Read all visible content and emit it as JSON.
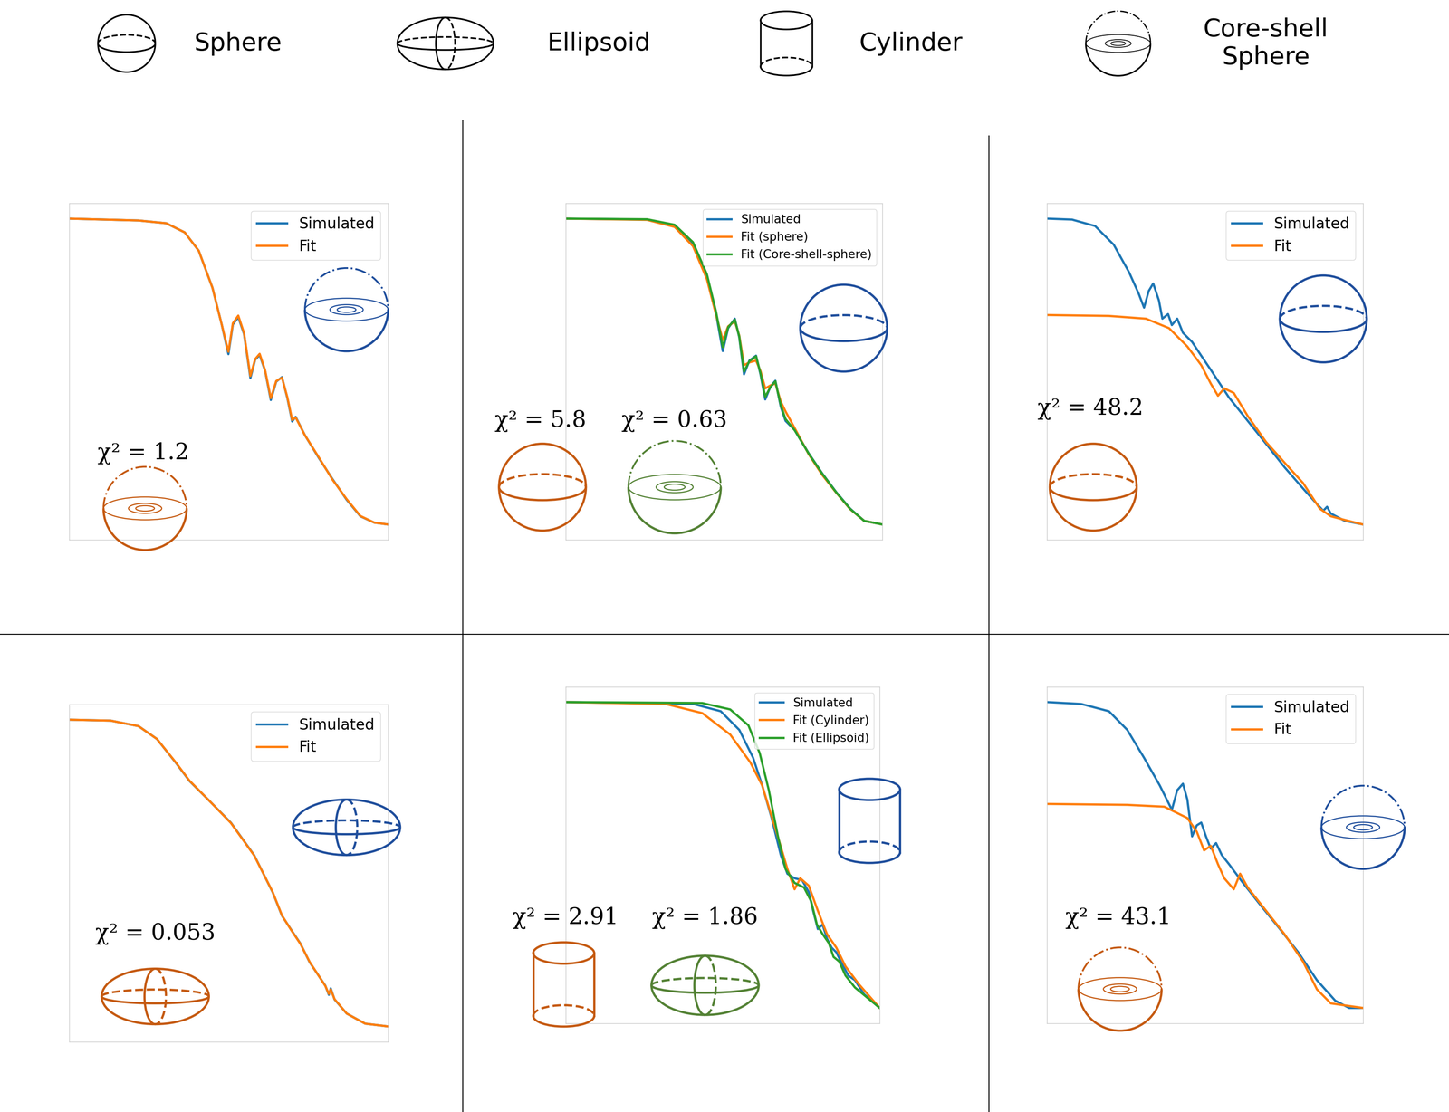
{
  "header": {
    "items": [
      "Sphere",
      "Ellipsoid",
      "Cylinder",
      "Core-shell\nSphere"
    ]
  },
  "chart_data": [
    {
      "type": "line",
      "xlim": [
        0,
        100
      ],
      "ylim": [
        -5,
        105
      ],
      "tick_labels": false,
      "legend": "upper right",
      "annotations": [
        "χ² = 1.2"
      ],
      "series": [
        {
          "name": "Simulated",
          "color": "#1f77b4",
          "x": [
            0,
            21.7,
            30.4,
            36.2,
            40.6,
            44.9,
            47.8,
            49.9,
            51.3,
            53.0,
            54.8,
            56.8,
            58.3,
            59.7,
            61.4,
            63.2,
            64.9,
            66.7,
            68.4,
            69.9,
            71.0,
            73.9,
            78.3,
            82.6,
            87.0,
            91.3,
            95.7,
            100
          ],
          "values": [
            100,
            99.4,
            98.5,
            95.5,
            89.5,
            77.4,
            65.4,
            55.7,
            65.4,
            67.8,
            62.3,
            47.9,
            53.9,
            55.4,
            50.3,
            40.7,
            46.7,
            48.2,
            41.3,
            33.7,
            35.2,
            29.2,
            21.7,
            14.8,
            8.1,
            2.7,
            0.6,
            0
          ]
        },
        {
          "name": "Fit",
          "color": "#ff7f0e",
          "x": [
            0,
            21.7,
            30.4,
            36.2,
            40.6,
            44.9,
            47.8,
            49.9,
            51.3,
            53.0,
            54.8,
            56.8,
            58.3,
            59.7,
            61.4,
            63.2,
            64.9,
            66.7,
            68.4,
            69.9,
            71.0,
            73.9,
            78.3,
            82.6,
            87.0,
            91.3,
            95.7,
            100
          ],
          "values": [
            100,
            99.4,
            98.5,
            95.5,
            89.5,
            77.4,
            65.4,
            56.5,
            65.8,
            68.3,
            62.6,
            48.6,
            54.1,
            55.8,
            50.5,
            41.3,
            46.9,
            48.0,
            41.6,
            34.2,
            35.0,
            29.2,
            21.9,
            14.6,
            8.3,
            2.8,
            0.6,
            0
          ]
        }
      ]
    },
    {
      "type": "line",
      "xlim": [
        0,
        100
      ],
      "ylim": [
        -5,
        105
      ],
      "tick_labels": false,
      "legend": "upper right",
      "annotations": [
        "χ² = 5.8",
        "χ² = 0.63"
      ],
      "series": [
        {
          "name": "Simulated",
          "color": "#1f77b4",
          "x": [
            0,
            25.7,
            34.4,
            40.2,
            44.6,
            47.5,
            49.6,
            51.3,
            53.4,
            54.8,
            56.3,
            58.0,
            60.1,
            61.5,
            63.0,
            64.7,
            66.2,
            67.9,
            69.4,
            72.3,
            76.7,
            81.0,
            85.4,
            89.8,
            94.2,
            100
          ],
          "values": [
            100,
            99.7,
            97.6,
            91.5,
            80.9,
            68.8,
            56.7,
            64.2,
            67.3,
            61.2,
            49.1,
            53.6,
            55.2,
            49.1,
            40.9,
            45.2,
            47.0,
            38.5,
            33.9,
            30.9,
            23.3,
            16.7,
            10.6,
            5.2,
            1.2,
            0
          ]
        },
        {
          "name": "Fit (sphere)",
          "color": "#ff7f0e",
          "x": [
            0,
            25.7,
            34.4,
            40.2,
            44.6,
            47.5,
            49.6,
            51.3,
            53.4,
            54.8,
            56.3,
            58.0,
            60.1,
            61.5,
            63.0,
            64.7,
            66.2,
            67.9,
            69.4,
            72.3,
            76.7,
            81.0,
            85.4,
            89.8,
            94.2,
            100
          ],
          "values": [
            100,
            99.6,
            97.3,
            91.0,
            80.2,
            68.5,
            60.3,
            64.8,
            66.4,
            61.8,
            52.1,
            53.0,
            53.6,
            50.2,
            44.5,
            45.5,
            46.1,
            40.2,
            37.0,
            31.5,
            23.0,
            16.2,
            10.4,
            5.0,
            1.2,
            0
          ]
        },
        {
          "name": "Fit (Core-shell-sphere)",
          "color": "#2ca02c",
          "x": [
            0,
            25.7,
            34.4,
            40.2,
            44.6,
            47.5,
            49.6,
            51.3,
            53.4,
            54.8,
            56.3,
            58.0,
            60.1,
            61.5,
            63.0,
            64.7,
            66.2,
            67.9,
            69.4,
            72.3,
            76.7,
            81.0,
            85.4,
            89.8,
            94.2,
            100
          ],
          "values": [
            100,
            99.8,
            98.0,
            92.3,
            81.8,
            69.5,
            58.0,
            64.5,
            67.0,
            61.5,
            50.0,
            53.4,
            55.0,
            49.5,
            41.8,
            45.0,
            46.8,
            39.0,
            34.5,
            30.8,
            23.2,
            16.6,
            10.5,
            5.1,
            1.2,
            0
          ]
        }
      ]
    },
    {
      "type": "line",
      "xlim": [
        0,
        100
      ],
      "ylim": [
        -5,
        105
      ],
      "tick_labels": false,
      "legend": "upper right",
      "annotations": [
        "χ² = 48.2"
      ],
      "series": [
        {
          "name": "Simulated",
          "color": "#1f77b4",
          "x": [
            0,
            7.9,
            15.2,
            21.1,
            26.0,
            29.0,
            30.7,
            32.2,
            33.6,
            35.4,
            36.5,
            38.3,
            39.5,
            41.2,
            43.0,
            45.9,
            48.8,
            51.8,
            57.6,
            63.5,
            69.3,
            75.1,
            81.0,
            85.4,
            87.4,
            88.6,
            89.8,
            94.2,
            100
          ],
          "values": [
            100,
            99.7,
            97.6,
            91.5,
            82.4,
            75.5,
            70.9,
            76.4,
            78.8,
            73.3,
            67.3,
            68.8,
            65.2,
            67.3,
            62.7,
            59.7,
            55.2,
            50.6,
            41.5,
            33.9,
            26.4,
            18.8,
            11.8,
            6.7,
            4.5,
            5.8,
            3.6,
            1.2,
            0
          ]
        },
        {
          "name": "Fit",
          "color": "#ff7f0e",
          "x": [
            0,
            19.6,
            31.3,
            38.6,
            44.4,
            48.8,
            51.8,
            54.1,
            56.1,
            59.1,
            63.5,
            69.3,
            75.1,
            81.0,
            86.3,
            89.8,
            94.2,
            100
          ],
          "values": [
            68.5,
            68.2,
            67.3,
            64.2,
            58.2,
            52.1,
            46.1,
            42.1,
            44.5,
            43.0,
            35.5,
            27.0,
            20.3,
            13.6,
            5.2,
            2.7,
            1.5,
            0
          ]
        }
      ]
    },
    {
      "type": "line",
      "xlim": [
        0,
        100
      ],
      "ylim": [
        -5,
        105
      ],
      "tick_labels": false,
      "legend": "upper right",
      "annotations": [
        "χ² = 0.053"
      ],
      "series": [
        {
          "name": "Simulated",
          "color": "#1f77b4",
          "x": [
            0,
            13,
            21.7,
            27.5,
            33.3,
            37.7,
            43.5,
            50.7,
            58.0,
            63.8,
            66.7,
            69.6,
            72.5,
            75.4,
            78.3,
            80.3,
            81.4,
            82.0,
            83.2,
            87.0,
            92.8,
            100
          ],
          "values": [
            100,
            99.7,
            97.9,
            93.7,
            86.1,
            80.0,
            74.0,
            66.4,
            55.8,
            43.7,
            36.1,
            31.5,
            27.0,
            20.9,
            16.4,
            13.3,
            10.3,
            12.4,
            8.8,
            4.2,
            0.9,
            0
          ]
        },
        {
          "name": "Fit",
          "color": "#ff7f0e",
          "x": [
            0,
            13,
            21.7,
            27.5,
            33.3,
            37.7,
            43.5,
            50.7,
            58.0,
            63.8,
            66.7,
            69.6,
            72.5,
            75.4,
            78.3,
            80.3,
            81.4,
            82.0,
            83.2,
            87.0,
            92.8,
            100
          ],
          "values": [
            100,
            99.7,
            97.9,
            93.7,
            86.2,
            80.1,
            74.0,
            66.3,
            55.7,
            43.8,
            36.2,
            31.4,
            26.9,
            21.0,
            16.4,
            13.2,
            10.6,
            12.1,
            8.9,
            4.2,
            0.9,
            0
          ]
        }
      ]
    },
    {
      "type": "line",
      "xlim": [
        0,
        100
      ],
      "ylim": [
        -5,
        105
      ],
      "tick_labels": false,
      "legend": "upper right",
      "annotations": [
        "χ² = 2.91",
        "χ² = 1.86"
      ],
      "series": [
        {
          "name": "Simulated",
          "color": "#1f77b4",
          "x": [
            0,
            40.6,
            49.4,
            55.3,
            59.7,
            62.6,
            65.6,
            68.5,
            70.6,
            72.9,
            75.3,
            77.4,
            78.8,
            80.3,
            81.8,
            83.2,
            84.7,
            86.2,
            87.6,
            90.0,
            92.1,
            95.0,
            100
          ],
          "values": [
            100,
            99.4,
            97.0,
            90.9,
            81.8,
            72.7,
            62.1,
            50.0,
            43.9,
            42.4,
            41.8,
            37.9,
            31.8,
            25.8,
            27.3,
            22.7,
            19.7,
            18.2,
            15.2,
            10.6,
            9.1,
            4.5,
            0
          ]
        },
        {
          "name": "Fit (Cylinder)",
          "color": "#ff7f0e",
          "x": [
            0,
            31.8,
            43.5,
            52.4,
            58.8,
            62.6,
            67.1,
            70.6,
            72.9,
            74.7,
            77.4,
            80.3,
            83.2,
            86.2,
            89.1,
            93.5,
            100
          ],
          "values": [
            100,
            99.4,
            96.4,
            89.4,
            80.3,
            72.7,
            57.6,
            45.5,
            38.8,
            42.4,
            40.0,
            31.8,
            24.2,
            19.7,
            13.6,
            7.6,
            0
          ]
        },
        {
          "name": "Fit (Ellipsoid)",
          "color": "#2ca02c",
          "x": [
            0,
            43.5,
            52.4,
            58.2,
            61.8,
            64.7,
            67.6,
            70.0,
            72.9,
            75.9,
            78.2,
            80.0,
            81.8,
            83.8,
            85.3,
            87.1,
            89.1,
            92.1,
            100
          ],
          "values": [
            100,
            99.7,
            97.6,
            92.4,
            83.3,
            71.2,
            56.1,
            45.5,
            40.9,
            39.4,
            34.8,
            27.3,
            24.2,
            21.2,
            16.7,
            15.2,
            10.6,
            6.7,
            0
          ]
        }
      ]
    },
    {
      "type": "line",
      "xlim": [
        0,
        100
      ],
      "ylim": [
        -5,
        105
      ],
      "tick_labels": false,
      "legend": "upper right",
      "annotations": [
        "χ² = 43.1"
      ],
      "series": [
        {
          "name": "Simulated",
          "color": "#1f77b4",
          "x": [
            0,
            10.8,
            19.6,
            25.4,
            30.7,
            35.7,
            39.5,
            41.2,
            43.0,
            44.4,
            45.9,
            47.4,
            48.8,
            50.3,
            51.8,
            53.5,
            55.3,
            57.6,
            62.0,
            67.8,
            73.7,
            79.5,
            85.4,
            91.2,
            95.6,
            100
          ],
          "values": [
            100,
            99.4,
            97.0,
            90.9,
            81.8,
            72.7,
            64.8,
            71.2,
            73.3,
            68.2,
            56.1,
            59.7,
            60.6,
            56.1,
            52.1,
            53.9,
            50.0,
            47.0,
            40.9,
            33.3,
            25.8,
            18.2,
            9.1,
            2.4,
            0,
            0
          ]
        },
        {
          "name": "Fit",
          "color": "#ff7f0e",
          "x": [
            0,
            25.4,
            37.1,
            44.4,
            47.4,
            49.7,
            51.8,
            54.1,
            56.1,
            59.1,
            61.1,
            63.5,
            69.3,
            75.1,
            81.0,
            85.4,
            89.8,
            100
          ],
          "values": [
            66.7,
            66.4,
            65.8,
            62.1,
            57.6,
            51.5,
            53.0,
            47.0,
            42.4,
            38.8,
            43.9,
            39.4,
            31.8,
            24.2,
            15.2,
            6.1,
            1.5,
            0
          ]
        }
      ]
    }
  ]
}
